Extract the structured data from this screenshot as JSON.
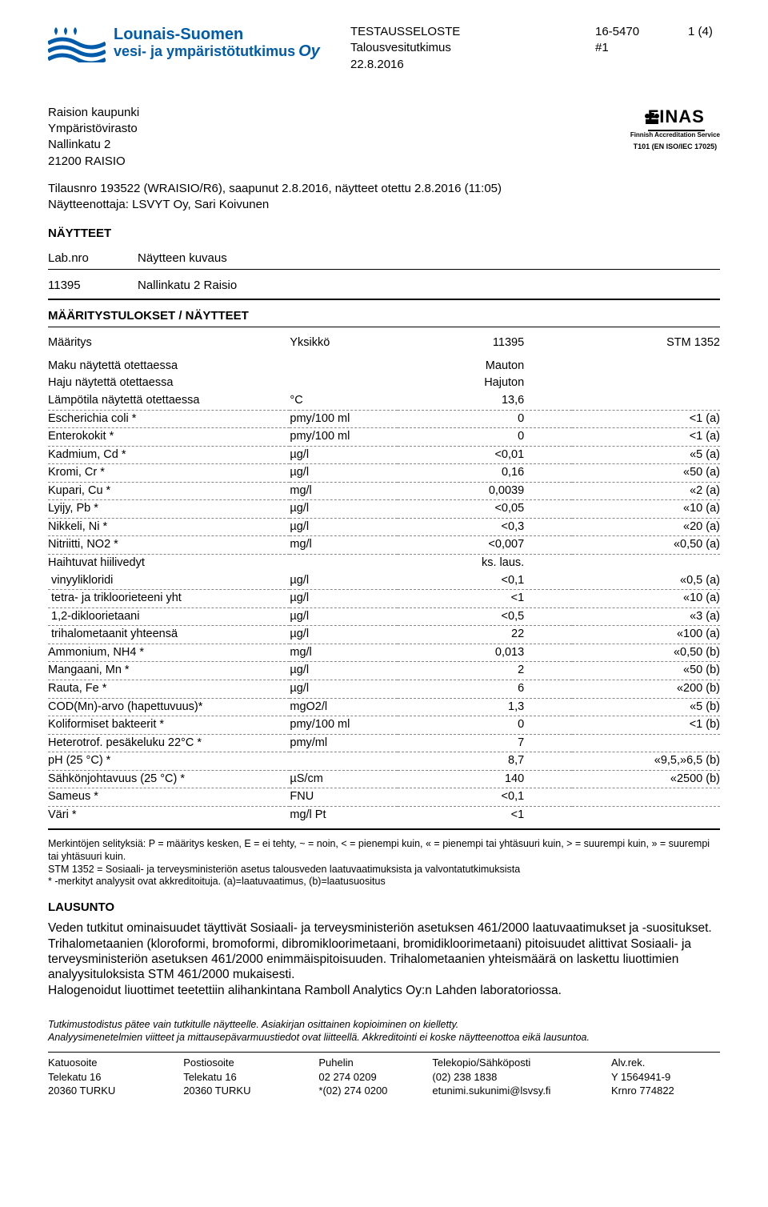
{
  "colors": {
    "brand_blue": "#005baa",
    "text": "#000000",
    "background": "#ffffff",
    "rule": "#000000",
    "dash": "#888888"
  },
  "header": {
    "logo_line1": "Lounais-Suomen",
    "logo_line2": "vesi- ja ympäristötutkimus",
    "logo_suffix": "Oy",
    "doc_type": "TESTAUSSELOSTE",
    "sub_type": "Talousvesitutkimus",
    "date": "22.8.2016",
    "report_no": "16-5470",
    "run_no": "#1",
    "page": "1 (4)"
  },
  "recipient": {
    "l1": "Raision kaupunki",
    "l2": "Ympäristövirasto",
    "l3": "Nallinkatu 2",
    "l4": "21200 RAISIO"
  },
  "finas": {
    "title": "FINAS",
    "sub": "Finnish Accreditation Service",
    "code": "T101 (EN ISO/IEC 17025)"
  },
  "order": {
    "line1": "Tilausnro 193522 (WRAISIO/R6), saapunut 2.8.2016, näytteet otettu 2.8.2016 (11:05)",
    "line2": "Näytteenottaja: LSVYT Oy, Sari Koivunen"
  },
  "naytteet": {
    "heading": "NÄYTTEET",
    "col1": "Lab.nro",
    "col2": "Näytteen kuvaus",
    "row_id": "11395",
    "row_desc": "Nallinkatu 2 Raisio"
  },
  "results": {
    "heading": "MÄÄRITYSTULOKSET / NÄYTTEET",
    "col_maaritys": "Määritys",
    "col_yksikko": "Yksikkö",
    "col_sample": "11395",
    "col_stm": "STM 1352",
    "rows": [
      {
        "n": "Maku näytettä otettaessa",
        "u": "",
        "v": "Mauton",
        "l": "",
        "d": false
      },
      {
        "n": "Haju näytettä otettaessa",
        "u": "",
        "v": "Hajuton",
        "l": "",
        "d": false
      },
      {
        "n": "Lämpötila näytettä otettaessa",
        "u": "°C",
        "v": "13,6",
        "l": "",
        "d": true
      },
      {
        "n": "Escherichia coli *",
        "u": "pmy/100 ml",
        "v": "0",
        "l": "<1 (a)",
        "d": true
      },
      {
        "n": "Enterokokit *",
        "u": "pmy/100 ml",
        "v": "0",
        "l": "<1 (a)",
        "d": true
      },
      {
        "n": "Kadmium, Cd *",
        "u": "µg/l",
        "v": "<0,01",
        "l": "«5 (a)",
        "d": true
      },
      {
        "n": "Kromi, Cr *",
        "u": "µg/l",
        "v": "0,16",
        "l": "«50 (a)",
        "d": true
      },
      {
        "n": "Kupari, Cu *",
        "u": "mg/l",
        "v": "0,0039",
        "l": "«2 (a)",
        "d": true
      },
      {
        "n": "Lyijy, Pb *",
        "u": "µg/l",
        "v": "<0,05",
        "l": "«10 (a)",
        "d": true
      },
      {
        "n": "Nikkeli, Ni *",
        "u": "µg/l",
        "v": "<0,3",
        "l": "«20 (a)",
        "d": true
      },
      {
        "n": "Nitriitti, NO2 *",
        "u": "mg/l",
        "v": "<0,007",
        "l": "«0,50 (a)",
        "d": true
      },
      {
        "n": "Haihtuvat hiilivedyt",
        "u": "",
        "v": "ks. laus.",
        "l": "",
        "d": false
      },
      {
        "n": " vinyylikloridi",
        "u": "µg/l",
        "v": "<0,1",
        "l": "«0,5 (a)",
        "d": true
      },
      {
        "n": " tetra- ja trikloorieteeni yht",
        "u": "µg/l",
        "v": "<1",
        "l": "«10 (a)",
        "d": true
      },
      {
        "n": " 1,2-dikloorietaani",
        "u": "µg/l",
        "v": "<0,5",
        "l": "«3 (a)",
        "d": true
      },
      {
        "n": " trihalometaanit yhteensä",
        "u": "µg/l",
        "v": "22",
        "l": "«100 (a)",
        "d": true
      },
      {
        "n": "Ammonium, NH4 *",
        "u": "mg/l",
        "v": "0,013",
        "l": "«0,50 (b)",
        "d": true
      },
      {
        "n": "Mangaani, Mn *",
        "u": "µg/l",
        "v": "2",
        "l": "«50 (b)",
        "d": true
      },
      {
        "n": "Rauta, Fe *",
        "u": "µg/l",
        "v": "6",
        "l": "«200 (b)",
        "d": true
      },
      {
        "n": "COD(Mn)-arvo (hapettuvuus)*",
        "u": "mgO2/l",
        "v": "1,3",
        "l": "«5 (b)",
        "d": true
      },
      {
        "n": "Koliformiset bakteerit *",
        "u": "pmy/100 ml",
        "v": "0",
        "l": "<1 (b)",
        "d": true
      },
      {
        "n": "Heterotrof. pesäkeluku 22°C  *",
        "u": "pmy/ml",
        "v": "7",
        "l": "",
        "d": true
      },
      {
        "n": "pH (25 °C) *",
        "u": "",
        "v": "8,7",
        "l": "«9,5,»6,5 (b)",
        "d": true
      },
      {
        "n": "Sähkönjohtavuus (25 °C) *",
        "u": "µS/cm",
        "v": "140",
        "l": "«2500 (b)",
        "d": true
      },
      {
        "n": "Sameus *",
        "u": "FNU",
        "v": "<0,1",
        "l": "",
        "d": true
      },
      {
        "n": "Väri *",
        "u": "mg/l Pt",
        "v": "<1",
        "l": "",
        "d": false
      }
    ]
  },
  "legend": {
    "l1": "Merkintöjen selityksiä: P = määritys kesken, E = ei tehty, ~ = noin, < = pienempi kuin, « = pienempi tai yhtäsuuri kuin, > = suurempi kuin, » = suurempi tai yhtäsuuri kuin.",
    "l2": "STM 1352 = Sosiaali- ja terveysministeriön asetus talousveden laatuvaatimuksista ja valvontatutkimuksista",
    "l3": "* -merkityt analyysit ovat akkreditoituja. (a)=laatuvaatimus, (b)=laatusuositus"
  },
  "lausunto": {
    "heading": "LAUSUNTO",
    "p1": "Veden tutkitut ominaisuudet täyttivät Sosiaali- ja terveysministeriön asetuksen 461/2000 laatuvaatimukset ja -suositukset.",
    "p2": "Trihalometaanien (kloroformi, bromoformi, dibromikloorimetaani, bromidikloorimetaani) pitoisuudet alittivat Sosiaali- ja terveysministeriön asetuksen 461/2000 enimmäispitoisuuden. Trihalometaanien yhteismäärä on laskettu liuottimien analyysituloksista STM 461/2000 mukaisesti.",
    "p3": "Halogenoidut liuottimet teetettiin alihankintana Ramboll Analytics Oy:n Lahden laboratoriossa."
  },
  "disclaimer": {
    "l1a": "Tutkimustodistus pätee vain tutkitulle näytteelle. ",
    "l1b": "Asiakirjan osittainen kopioiminen on kielletty.",
    "l2": "Analyysimenetelmien viitteet ja mittausepävarmuustiedot ovat liitteellä. Akkreditointi ei koske näytteenottoa eikä lausuntoa."
  },
  "footer": {
    "h1": "Katuosoite",
    "h2": "Postiosoite",
    "h3": "Puhelin",
    "h4": "Telekopio/Sähköposti",
    "h5": "Alv.rek.",
    "r1c1": "Telekatu 16",
    "r1c2": "Telekatu 16",
    "r1c3": "02 274 0209",
    "r1c4": "(02) 238 1838",
    "r1c5": "Y 1564941-9",
    "r2c1": "20360 TURKU",
    "r2c2": "20360 TURKU",
    "r2c3": "*(02) 274 0200",
    "r2c4": "etunimi.sukunimi@lsvsy.fi",
    "r2c5": "Krnro 774822"
  }
}
